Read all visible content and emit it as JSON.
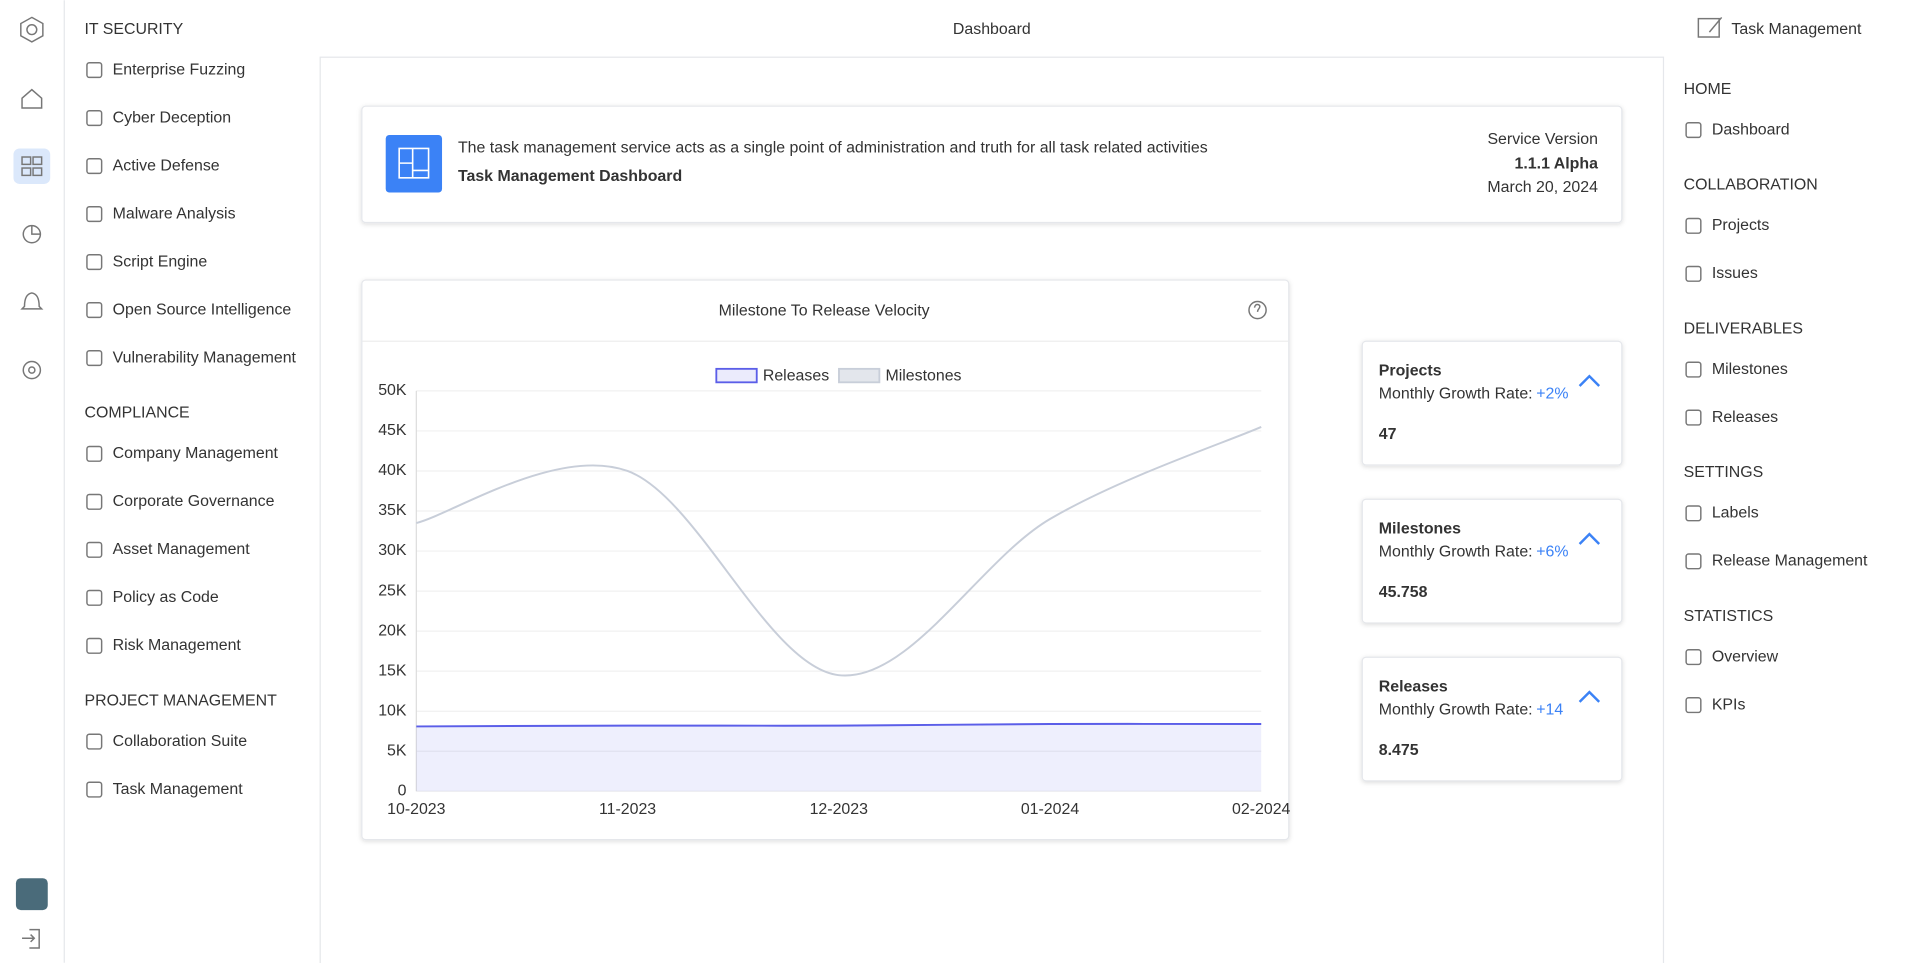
{
  "header": {
    "title": "Dashboard",
    "app": "Task Management"
  },
  "left_nav": {
    "sections": [
      {
        "title": "IT SECURITY",
        "items": [
          "Enterprise Fuzzing",
          "Cyber Deception",
          "Active Defense",
          "Malware Analysis",
          "Script Engine",
          "Open Source Intelligence",
          "Vulnerability Management"
        ]
      },
      {
        "title": "COMPLIANCE",
        "items": [
          "Company Management",
          "Corporate Governance",
          "Asset Management",
          "Policy as Code",
          "Risk Management"
        ]
      },
      {
        "title": "PROJECT MANAGEMENT",
        "items": [
          "Collaboration Suite",
          "Task Management"
        ]
      }
    ]
  },
  "banner": {
    "description": "The task management service acts as a single point of administration and truth for all task related activities",
    "title": "Task Management Dashboard",
    "version_label": "Service Version",
    "version": "1.1.1 Alpha",
    "date": "March 20, 2024"
  },
  "chart_data": {
    "type": "line",
    "title": "Milestone To Release Velocity",
    "categories": [
      "10-2023",
      "11-2023",
      "12-2023",
      "01-2024",
      "02-2024"
    ],
    "series": [
      {
        "name": "Releases",
        "color": "#5b5ee8",
        "fill": true,
        "values": [
          8100,
          8200,
          8200,
          8400,
          8400
        ]
      },
      {
        "name": "Milestones",
        "color": "#c8ced9",
        "fill": false,
        "values": [
          33500,
          40000,
          14500,
          34000,
          45500
        ]
      }
    ],
    "ylim": [
      0,
      50000
    ],
    "yticks": [
      0,
      {
        "value": 5000,
        "label": "5K"
      },
      {
        "value": 10000,
        "label": "10K"
      },
      {
        "value": 15000,
        "label": "15K"
      },
      {
        "value": 20000,
        "label": "20K"
      },
      {
        "value": 25000,
        "label": "25K"
      },
      {
        "value": 30000,
        "label": "30K"
      },
      {
        "value": 35000,
        "label": "35K"
      },
      {
        "value": 40000,
        "label": "40K"
      },
      {
        "value": 45000,
        "label": "45K"
      },
      {
        "value": 50000,
        "label": "50K"
      }
    ],
    "grid": true,
    "legend": "top"
  },
  "stats": [
    {
      "title": "Projects",
      "growth_label": "Monthly Growth Rate:",
      "growth": "+2%",
      "value": "47"
    },
    {
      "title": "Milestones",
      "growth_label": "Monthly Growth Rate:",
      "growth": "+6%",
      "value": "45.758"
    },
    {
      "title": "Releases",
      "growth_label": "Monthly Growth Rate:",
      "growth": "+14",
      "value": "8.475"
    }
  ],
  "right_nav": {
    "sections": [
      {
        "title": "HOME",
        "items": [
          "Dashboard"
        ]
      },
      {
        "title": "COLLABORATION",
        "items": [
          "Projects",
          "Issues"
        ]
      },
      {
        "title": "DELIVERABLES",
        "items": [
          "Milestones",
          "Releases"
        ]
      },
      {
        "title": "SETTINGS",
        "items": [
          "Labels",
          "Release Management"
        ]
      },
      {
        "title": "STATISTICS",
        "items": [
          "Overview",
          "KPIs"
        ]
      }
    ]
  }
}
